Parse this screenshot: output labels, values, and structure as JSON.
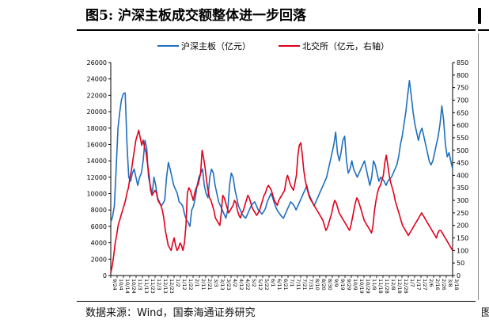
{
  "header": {
    "title": "图5:  沪深主板成交额整体进一步回落"
  },
  "footer": {
    "source": "数据来源：Wind，国泰海通证券研究",
    "source_tail": "图"
  },
  "colors": {
    "series_main": "#1f6fbf",
    "series_bj": "#e0001b"
  },
  "chart_data": {
    "type": "line",
    "title": "",
    "xlabel": "",
    "ylabel": "",
    "legend_position": "top-center",
    "grid": false,
    "y_left": {
      "min": 0,
      "max": 26000,
      "step": 2000
    },
    "y_right": {
      "min": 0,
      "max": 850,
      "step": 50
    },
    "x_ticks": [
      "9/24",
      "10/4",
      "10/14",
      "10/24",
      "11/3",
      "11/13",
      "11/23",
      "12/3",
      "12/13",
      "12/23",
      "1/2",
      "1/12",
      "1/22",
      "2/1",
      "2/11",
      "2/21",
      "3/3",
      "3/13",
      "3/23",
      "4/2",
      "4/12",
      "4/22",
      "5/2",
      "5/12",
      "5/22",
      "6/1",
      "6/11",
      "6/21",
      "7/1",
      "7/11",
      "7/21",
      "7/31",
      "8/10",
      "8/20",
      "8/30",
      "9/9",
      "9/19",
      "9/29",
      "10/9",
      "10/19",
      "10/29",
      "11/8",
      "11/18",
      "11/28",
      "12/8",
      "12/18",
      "12/28",
      "1/7",
      "1/17",
      "1/27",
      "2/6",
      "2/16",
      "2/26",
      "3/8",
      "3/18"
    ],
    "series": [
      {
        "name": "沪深主板（亿元）",
        "axis": "left",
        "color": "#1f6fbf",
        "values": [
          6500,
          7200,
          8500,
          13000,
          18000,
          20000,
          21500,
          22200,
          22300,
          16000,
          12000,
          11500,
          12500,
          13000,
          12000,
          11000,
          12000,
          12500,
          14000,
          16500,
          15500,
          12000,
          11000,
          10000,
          12000,
          11000,
          9500,
          9000,
          8500,
          8800,
          9200,
          12000,
          13800,
          13000,
          12000,
          11000,
          10500,
          10000,
          9000,
          8800,
          8500,
          7500,
          6800,
          6500,
          6000,
          8000,
          8500,
          9500,
          11000,
          12000,
          12500,
          13000,
          11000,
          10000,
          9500,
          12000,
          13000,
          12500,
          11000,
          10000,
          9000,
          8500,
          8000,
          7500,
          7000,
          8000,
          11000,
          12500,
          12000,
          10500,
          9500,
          8500,
          8000,
          7500,
          7200,
          7000,
          7500,
          8000,
          8500,
          8800,
          9000,
          8500,
          8000,
          7800,
          7500,
          7800,
          8200,
          9000,
          9500,
          10000,
          9500,
          8800,
          8200,
          7800,
          7500,
          7200,
          7000,
          7500,
          8000,
          8500,
          9000,
          8800,
          8500,
          8000,
          8500,
          9000,
          9500,
          10000,
          10500,
          11000,
          10000,
          9500,
          9000,
          8500,
          9000,
          9500,
          10000,
          10500,
          11000,
          11500,
          12000,
          13000,
          14000,
          15000,
          16000,
          17500,
          15000,
          14000,
          15000,
          16500,
          17000,
          14000,
          12500,
          13000,
          14000,
          13000,
          12500,
          12000,
          12500,
          13000,
          13500,
          14000,
          13000,
          12000,
          11000,
          12000,
          14000,
          13500,
          12500,
          11500,
          12000,
          11800,
          11500,
          11000,
          11500,
          11800,
          12000,
          12500,
          13000,
          13500,
          14500,
          16000,
          17000,
          18500,
          20000,
          22000,
          23800,
          22000,
          20000,
          18500,
          17500,
          16500,
          17500,
          18000,
          17000,
          16000,
          15000,
          14000,
          13500,
          14000,
          15000,
          16000,
          17000,
          18500,
          20700,
          19000,
          16000,
          14500,
          15000,
          14000,
          13000
        ]
      },
      {
        "name": "北交所（亿元，右轴）",
        "axis": "right",
        "color": "#e0001b",
        "values": [
          10,
          40,
          80,
          130,
          160,
          200,
          220,
          240,
          260,
          280,
          300,
          330,
          350,
          390,
          420,
          460,
          500,
          540,
          560,
          580,
          550,
          520,
          540,
          510,
          490,
          440,
          400,
          340,
          320,
          330,
          340,
          330,
          300,
          290,
          280,
          260,
          230,
          180,
          150,
          120,
          110,
          100,
          130,
          150,
          120,
          100,
          110,
          130,
          120,
          100,
          130,
          200,
          330,
          350,
          340,
          320,
          300,
          330,
          350,
          360,
          380,
          410,
          500,
          470,
          430,
          380,
          340,
          310,
          300,
          280,
          260,
          230,
          220,
          210,
          200,
          250,
          320,
          310,
          290,
          270,
          250,
          260,
          270,
          280,
          300,
          290,
          260,
          240,
          230,
          250,
          260,
          280,
          300,
          320,
          310,
          290,
          270,
          260,
          250,
          240,
          250,
          260,
          280,
          300,
          320,
          330,
          350,
          360,
          350,
          340,
          320,
          300,
          290,
          280,
          300,
          310,
          320,
          330,
          340,
          380,
          400,
          380,
          360,
          350,
          340,
          370,
          400,
          480,
          520,
          530,
          480,
          420,
          380,
          350,
          330,
          310,
          300,
          290,
          280,
          270,
          260,
          250,
          240,
          230,
          220,
          200,
          180,
          190,
          210,
          230,
          250,
          280,
          300,
          290,
          270,
          250,
          240,
          230,
          220,
          210,
          200,
          190,
          180,
          200,
          230,
          260,
          290,
          310,
          300,
          280,
          260,
          240,
          220,
          210,
          200,
          190,
          180,
          170,
          200,
          260,
          300,
          330,
          350,
          360,
          380,
          400,
          450,
          480,
          440,
          400,
          370,
          350,
          330,
          300,
          280,
          260,
          240,
          220,
          200,
          190,
          180,
          170,
          160,
          170,
          180,
          190,
          200,
          210,
          220,
          230,
          240,
          250,
          240,
          230,
          220,
          210,
          200,
          190,
          180,
          170,
          160,
          150,
          170,
          180,
          180,
          170,
          160,
          150,
          140,
          130,
          120,
          110,
          100
        ]
      }
    ]
  }
}
